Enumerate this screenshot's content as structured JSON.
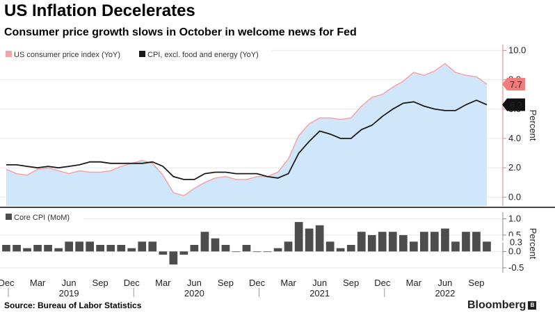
{
  "title": "US Inflation Decelerates",
  "subtitle": "Consumer price growth slows in October in welcome news for Fed",
  "source": "Source: Bureau of Labor Statistics",
  "brand": "Bloomberg",
  "colors": {
    "cpi_line": "#f4a3a8",
    "cpi_fill": "#cfe6fb",
    "core_line": "#1a1a1a",
    "bars": "#4d4d4d",
    "badge_cpi": "#f07c7c",
    "badge_core": "#111111",
    "badge_mom": "#ffffff",
    "axis": "#e08080"
  },
  "chart_data": [
    {
      "type": "area",
      "title": "",
      "ylabel": "Percent",
      "ylim": [
        -0.6,
        10.4
      ],
      "yticks": [
        "10.0",
        "8.0",
        "6.0",
        "4.0",
        "2.0",
        "0.0"
      ],
      "ytick_values": [
        10,
        8,
        6,
        4,
        2,
        0
      ],
      "x_labels": [
        "Dec",
        "Mar",
        "Jun",
        "Sep",
        "Dec",
        "Mar",
        "Jun",
        "Sep",
        "Dec",
        "Mar",
        "Jun",
        "Sep",
        "Dec",
        "Mar",
        "Jun",
        "Sep"
      ],
      "year_labels": [
        "2019",
        "2020",
        "2021",
        "2022"
      ],
      "x": [
        "2018-12",
        "2019-01",
        "2019-02",
        "2019-03",
        "2019-04",
        "2019-05",
        "2019-06",
        "2019-07",
        "2019-08",
        "2019-09",
        "2019-10",
        "2019-11",
        "2019-12",
        "2020-01",
        "2020-02",
        "2020-03",
        "2020-04",
        "2020-05",
        "2020-06",
        "2020-07",
        "2020-08",
        "2020-09",
        "2020-10",
        "2020-11",
        "2020-12",
        "2021-01",
        "2021-02",
        "2021-03",
        "2021-04",
        "2021-05",
        "2021-06",
        "2021-07",
        "2021-08",
        "2021-09",
        "2021-10",
        "2021-11",
        "2021-12",
        "2022-01",
        "2022-02",
        "2022-03",
        "2022-04",
        "2022-05",
        "2022-06",
        "2022-07",
        "2022-08",
        "2022-09",
        "2022-10"
      ],
      "series": [
        {
          "name": "US consumer price index (YoY)",
          "values": [
            1.9,
            1.6,
            1.5,
            1.9,
            2.0,
            1.8,
            1.6,
            1.8,
            1.7,
            1.7,
            1.8,
            2.1,
            2.3,
            2.5,
            2.3,
            1.5,
            0.3,
            0.1,
            0.6,
            1.0,
            1.3,
            1.4,
            1.2,
            1.2,
            1.4,
            1.4,
            1.7,
            2.6,
            4.2,
            5.0,
            5.4,
            5.4,
            5.3,
            5.4,
            6.2,
            6.8,
            7.0,
            7.5,
            7.9,
            8.5,
            8.3,
            8.6,
            9.1,
            8.5,
            8.3,
            8.2,
            7.7
          ]
        },
        {
          "name": "CPI, excl. food and energy (YoY)",
          "values": [
            2.2,
            2.2,
            2.1,
            2.0,
            2.1,
            2.0,
            2.1,
            2.2,
            2.4,
            2.4,
            2.3,
            2.3,
            2.3,
            2.3,
            2.4,
            2.1,
            1.4,
            1.2,
            1.2,
            1.6,
            1.7,
            1.7,
            1.6,
            1.6,
            1.6,
            1.4,
            1.3,
            1.6,
            3.0,
            3.8,
            4.5,
            4.3,
            4.0,
            4.0,
            4.6,
            4.9,
            5.5,
            6.0,
            6.4,
            6.5,
            6.2,
            6.0,
            5.9,
            5.9,
            6.3,
            6.6,
            6.3
          ]
        }
      ],
      "end_labels": [
        "7.7",
        "6.3"
      ],
      "legend_position": "top-left",
      "grid": true
    },
    {
      "type": "bar",
      "title": "",
      "ylabel": "Percent",
      "ylim": [
        -0.65,
        1.2
      ],
      "yticks": [
        "1.0",
        "0.5",
        "0.0",
        "-0.5"
      ],
      "ytick_values": [
        1.0,
        0.5,
        0.0,
        -0.5
      ],
      "series": [
        {
          "name": "Core CPI (MoM)",
          "values": [
            0.2,
            0.2,
            0.1,
            0.2,
            0.2,
            0.1,
            0.3,
            0.3,
            0.3,
            0.2,
            0.2,
            0.2,
            0.1,
            0.3,
            0.3,
            -0.1,
            -0.4,
            -0.1,
            0.2,
            0.6,
            0.4,
            0.2,
            0.0,
            0.2,
            0.0,
            0.0,
            0.1,
            0.3,
            0.9,
            0.7,
            0.8,
            0.3,
            0.1,
            0.2,
            0.6,
            0.5,
            0.6,
            0.6,
            0.5,
            0.3,
            0.6,
            0.6,
            0.7,
            0.3,
            0.6,
            0.6,
            0.3
          ]
        }
      ],
      "end_labels": [
        "0.3"
      ],
      "legend_position": "top-left",
      "grid": true
    }
  ]
}
